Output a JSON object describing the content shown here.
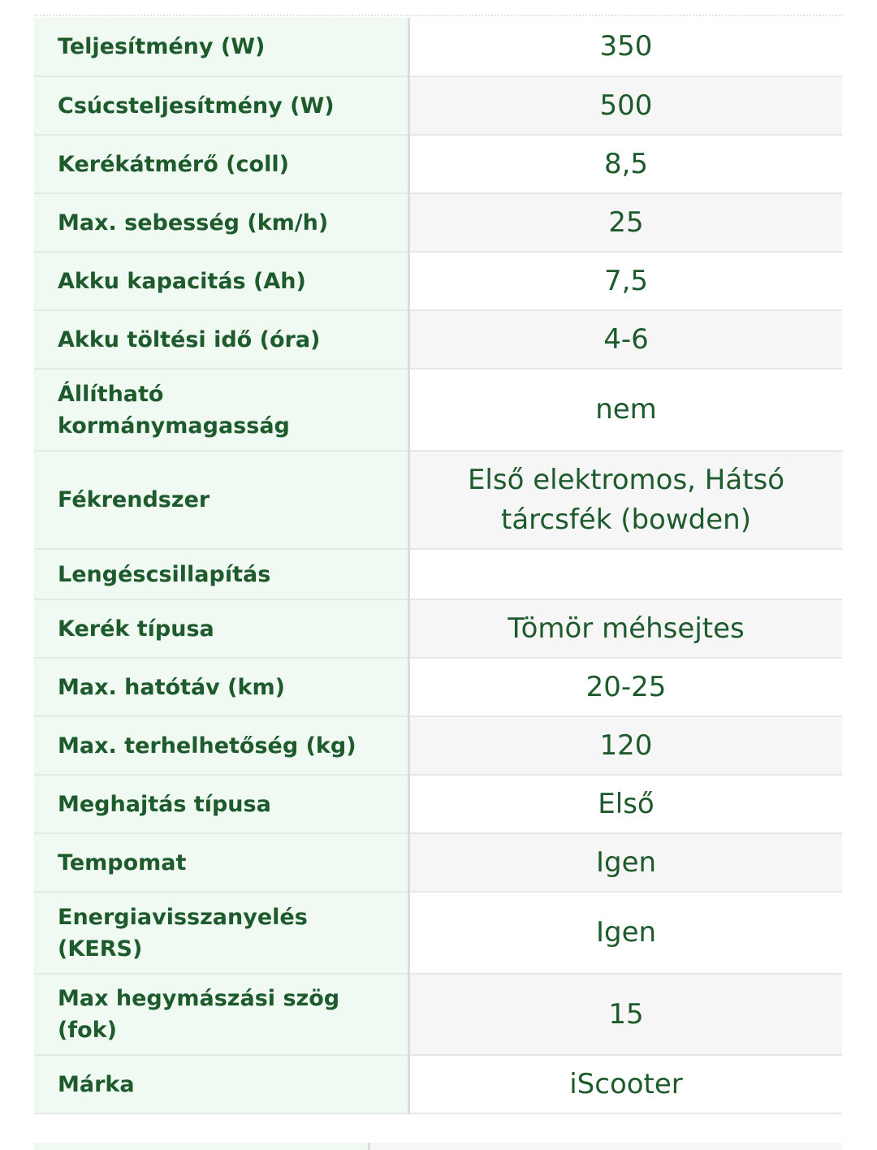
{
  "table": {
    "rows": [
      [
        "Teljesítmény (W)",
        "350"
      ],
      [
        "Csúcsteljesítmény (W)",
        "500"
      ],
      [
        "Kerékátmérő (coll)",
        "8,5"
      ],
      [
        "Max. sebesség (km/h)",
        "25"
      ],
      [
        "Akku kapacitás (Ah)",
        "7,5"
      ],
      [
        "Akku töltési idő (óra)",
        "4-6"
      ],
      [
        "Állítható kormánymagasság",
        "nem"
      ],
      [
        "Fékrendszer",
        "Első elektromos, Hátsó tárcsfék (bowden)"
      ],
      [
        "Lengéscsillapítás",
        null
      ],
      [
        "Kerék típusa",
        "Tömör méhsejtes"
      ],
      [
        "Max. hatótáv (km)",
        "20-25"
      ],
      [
        "Max. terhelhetőség (kg)",
        "120"
      ],
      [
        "Meghajtás típusa",
        "Első"
      ],
      [
        "Tempomat",
        "Igen"
      ],
      [
        "Energiavisszanyelés (KERS)",
        "Igen"
      ],
      [
        "Max hegymászási szög (fok)",
        "15"
      ],
      [
        "Márka",
        "iScooter"
      ]
    ]
  }
}
